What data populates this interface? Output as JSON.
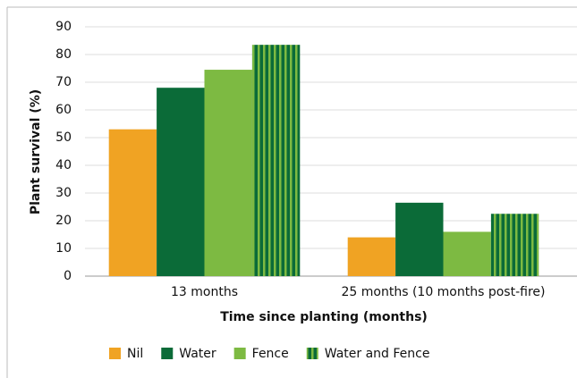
{
  "chart_data": {
    "type": "bar",
    "x_label": "Time since planting (months)",
    "y_label": "Plant  survival (%)",
    "categories": [
      "13 months",
      "25 months (10 months post-fire)"
    ],
    "series": [
      {
        "name": "Nil",
        "color": "#f0a323",
        "values": [
          53,
          14
        ]
      },
      {
        "name": "Water",
        "color": "#0b6b38",
        "values": [
          68,
          26.5
        ]
      },
      {
        "name": "Fence",
        "color": "#7dba42",
        "values": [
          74.5,
          16
        ]
      },
      {
        "name": "Water and Fence",
        "color": "#0b6b38",
        "stripe_color": "#7dba42",
        "values": [
          83.5,
          22.5
        ]
      }
    ],
    "ylim": [
      0,
      90
    ],
    "yticks": [
      0,
      10,
      20,
      30,
      40,
      50,
      60,
      70,
      80,
      90
    ],
    "grid": true,
    "legend": "bottom"
  }
}
